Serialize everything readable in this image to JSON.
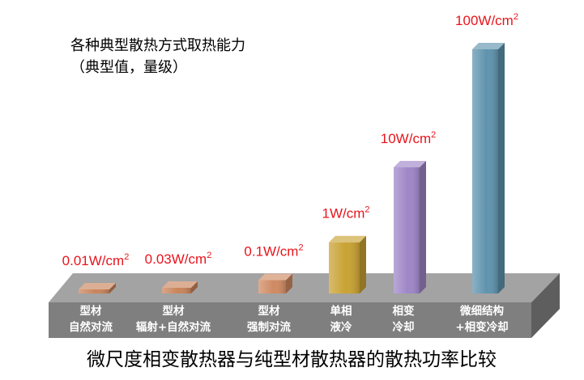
{
  "chart_data": {
    "type": "bar",
    "style": "3d",
    "title_lines": [
      "各种典型散热方式取热能力",
      "（典型值，量级）"
    ],
    "caption": "微尺度相变散热器与纯型材散热器的散热功率比较",
    "categories": [
      [
        "型材",
        "自然对流"
      ],
      [
        "型材",
        "辐射+自然对流"
      ],
      [
        "型材",
        "强制对流"
      ],
      [
        "单相",
        "液冷"
      ],
      [
        "相变",
        "冷却"
      ],
      [
        "微细结构",
        "+相变冷却"
      ]
    ],
    "values": [
      0.01,
      0.03,
      0.1,
      1,
      10,
      100
    ],
    "value_labels": [
      {
        "base": "0.01W/cm",
        "sup": "2"
      },
      {
        "base": "0.03W/cm",
        "sup": "2"
      },
      {
        "base": "0.1W/cm",
        "sup": "2"
      },
      {
        "base": "1W/cm",
        "sup": "2"
      },
      {
        "base": "10W/cm",
        "sup": "2"
      },
      {
        "base": "100W/cm",
        "sup": "2"
      }
    ],
    "unit": "W/cm²",
    "bar_colors": [
      "#c9845a",
      "#c9845a",
      "#cf8a62",
      "#c9a233",
      "#9f86c7",
      "#5f93ae"
    ],
    "platform_color": "#7f7f7f",
    "value_label_color": "#e8141c"
  }
}
